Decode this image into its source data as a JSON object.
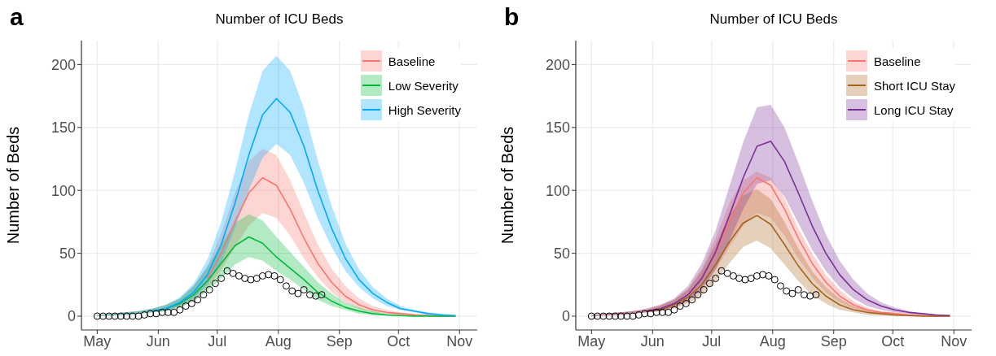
{
  "chart_data": [
    {
      "type": "line",
      "title": "Number of ICU Beds",
      "ylabel": "Number of Beds",
      "annotations": [
        "a"
      ],
      "legend": "top right",
      "grid": true,
      "marker": "none",
      "xlim": [
        "--04-23",
        "--11-10"
      ],
      "ylim": [
        -11,
        219
      ],
      "yticks": [
        0,
        50,
        100,
        150,
        200
      ],
      "xticks": [
        {
          "value": "--05-01",
          "label": "May"
        },
        {
          "value": "--06-01",
          "label": "Jun"
        },
        {
          "value": "--07-01",
          "label": "Jul"
        },
        {
          "value": "--08-01",
          "label": "Aug"
        },
        {
          "value": "--09-01",
          "label": "Sep"
        },
        {
          "value": "--10-01",
          "label": "Oct"
        },
        {
          "value": "--11-01",
          "label": "Nov"
        }
      ],
      "x": [
        "--05-01",
        "--05-08",
        "--05-15",
        "--05-22",
        "--05-29",
        "--06-05",
        "--06-12",
        "--06-19",
        "--06-26",
        "--07-03",
        "--07-10",
        "--07-17",
        "--07-24",
        "--07-31",
        "--08-07",
        "--08-14",
        "--08-21",
        "--08-28",
        "--09-04",
        "--09-11",
        "--09-18",
        "--09-25",
        "--10-02",
        "--10-09",
        "--10-16",
        "--10-23",
        "--10-30"
      ],
      "series": [
        {
          "name": "Baseline",
          "color": "#f8766d",
          "values": [
            null,
            null,
            null,
            null,
            null,
            null,
            null,
            null,
            30,
            50,
            75,
            98,
            110,
            104,
            85,
            62,
            42,
            27,
            16,
            9,
            5,
            3,
            2,
            1,
            0.5,
            0,
            0
          ],
          "lower": [
            0,
            0.5,
            1,
            2,
            3,
            4,
            7,
            12,
            22,
            37,
            55,
            72,
            82,
            78,
            64,
            46,
            31,
            19,
            11,
            6,
            3,
            2,
            1,
            0.5,
            0,
            0,
            0
          ],
          "upper": [
            1,
            2,
            3,
            4,
            6,
            9,
            14,
            24,
            40,
            66,
            98,
            123,
            133,
            128,
            108,
            82,
            57,
            38,
            24,
            14,
            8,
            5,
            3,
            2,
            1,
            1,
            0
          ]
        },
        {
          "name": "Low Severity",
          "color": "#00ba38",
          "values": [
            null,
            null,
            null,
            null,
            4,
            6,
            10,
            17,
            28,
            42,
            56,
            63,
            58,
            47,
            38,
            29,
            19,
            12,
            7,
            4,
            2,
            1,
            0.5,
            0,
            0,
            0,
            0
          ],
          "lower": [
            0,
            0.5,
            1,
            2,
            3,
            4,
            7,
            12,
            20,
            30,
            41,
            47,
            44,
            36,
            29,
            21,
            13,
            8,
            5,
            2,
            1,
            0.5,
            0,
            0,
            0,
            0,
            0
          ],
          "upper": [
            1,
            2,
            3,
            4,
            6,
            9,
            14,
            24,
            39,
            57,
            74,
            81,
            76,
            63,
            51,
            39,
            27,
            18,
            11,
            7,
            4,
            2,
            1,
            1,
            0.5,
            0,
            0
          ]
        },
        {
          "name": "High Severity",
          "color": "#00a9ff",
          "values": [
            null,
            null,
            null,
            null,
            4,
            6,
            11,
            19,
            33,
            57,
            90,
            128,
            160,
            173,
            162,
            135,
            100,
            70,
            46,
            29,
            18,
            11,
            6,
            4,
            2,
            1,
            0.5
          ],
          "lower": [
            0,
            0.5,
            1,
            2,
            3,
            4,
            8,
            14,
            25,
            43,
            70,
            100,
            126,
            137,
            128,
            106,
            78,
            55,
            36,
            23,
            14,
            8,
            5,
            3,
            1,
            0.5,
            0
          ],
          "upper": [
            1,
            2,
            3,
            4,
            6,
            9,
            15,
            26,
            45,
            75,
            115,
            160,
            195,
            207,
            195,
            165,
            124,
            88,
            58,
            37,
            23,
            14,
            8,
            5,
            3,
            2,
            1
          ]
        },
        {
          "type": "scatter",
          "color": "#000000",
          "marker": "circle",
          "x": [
            "--05-01",
            "--05-04",
            "--05-07",
            "--05-10",
            "--05-13",
            "--05-16",
            "--05-19",
            "--05-22",
            "--05-25",
            "--05-28",
            "--05-31",
            "--06-03",
            "--06-06",
            "--06-09",
            "--06-12",
            "--06-15",
            "--06-18",
            "--06-21",
            "--06-24",
            "--06-27",
            "--06-30",
            "--07-03",
            "--07-06",
            "--07-09",
            "--07-12",
            "--07-15",
            "--07-18",
            "--07-21",
            "--07-24",
            "--07-27",
            "--07-30",
            "--08-02",
            "--08-05",
            "--08-08",
            "--08-11",
            "--08-14",
            "--08-17",
            "--08-20",
            "--08-23"
          ],
          "values": [
            0,
            0,
            0,
            0,
            0,
            0,
            0,
            0,
            1,
            2,
            2,
            3,
            3,
            3,
            5,
            8,
            10,
            13,
            17,
            21,
            26,
            30,
            36,
            34,
            32,
            30,
            29,
            30,
            32,
            33,
            32,
            29,
            24,
            20,
            18,
            21,
            17,
            16,
            17
          ]
        }
      ]
    },
    {
      "type": "line",
      "title": "Number of ICU Beds",
      "ylabel": "Number of Beds",
      "annotations": [
        "b"
      ],
      "legend": "top right",
      "grid": true,
      "marker": "none",
      "xlim": [
        "--04-23",
        "--11-10"
      ],
      "ylim": [
        -11,
        219
      ],
      "yticks": [
        0,
        50,
        100,
        150,
        200
      ],
      "xticks": [
        {
          "value": "--05-01",
          "label": "May"
        },
        {
          "value": "--06-01",
          "label": "Jun"
        },
        {
          "value": "--07-01",
          "label": "Jul"
        },
        {
          "value": "--08-01",
          "label": "Aug"
        },
        {
          "value": "--09-01",
          "label": "Sep"
        },
        {
          "value": "--10-01",
          "label": "Oct"
        },
        {
          "value": "--11-01",
          "label": "Nov"
        }
      ],
      "x": [
        "--05-01",
        "--05-08",
        "--05-15",
        "--05-22",
        "--05-29",
        "--06-05",
        "--06-12",
        "--06-19",
        "--06-26",
        "--07-03",
        "--07-10",
        "--07-17",
        "--07-24",
        "--07-31",
        "--08-07",
        "--08-14",
        "--08-21",
        "--08-28",
        "--09-04",
        "--09-11",
        "--09-18",
        "--09-25",
        "--10-02",
        "--10-09",
        "--10-16",
        "--10-23",
        "--10-30"
      ],
      "series": [
        {
          "name": "Baseline",
          "color": "#f8766d",
          "values": [
            null,
            null,
            null,
            null,
            null,
            null,
            null,
            17,
            30,
            50,
            75,
            98,
            110,
            104,
            85,
            62,
            42,
            27,
            16,
            9,
            5,
            3,
            2,
            1,
            0.5,
            0,
            0
          ],
          "lower": [
            0,
            0.5,
            1,
            2,
            3,
            4,
            7,
            12,
            22,
            37,
            55,
            72,
            82,
            78,
            64,
            46,
            31,
            19,
            11,
            6,
            3,
            2,
            1,
            0.5,
            0,
            0,
            0
          ],
          "upper": [
            1,
            2,
            3,
            4,
            6,
            9,
            13,
            22,
            38,
            62,
            90,
            108,
            115,
            110,
            94,
            70,
            50,
            33,
            21,
            12,
            7,
            4,
            3,
            2,
            1,
            1,
            0
          ]
        },
        {
          "name": "Short ICU Stay",
          "color": "#a5641e",
          "values": [
            null,
            null,
            null,
            null,
            4,
            5,
            9,
            15,
            25,
            41,
            59,
            74,
            80,
            73,
            57,
            40,
            26,
            16,
            9,
            5,
            3,
            2,
            1,
            0.5,
            0,
            0,
            0
          ],
          "lower": [
            0,
            0.5,
            1,
            2,
            3,
            4,
            6,
            10,
            17,
            28,
            42,
            55,
            60,
            54,
            41,
            28,
            17,
            10,
            5,
            3,
            1,
            0.5,
            0,
            0,
            0,
            0,
            0
          ],
          "upper": [
            1,
            2,
            3,
            4,
            5,
            8,
            13,
            21,
            36,
            57,
            80,
            96,
            101,
            93,
            75,
            54,
            36,
            23,
            14,
            8,
            5,
            3,
            2,
            1,
            0.5,
            0,
            0
          ]
        },
        {
          "name": "Long ICU Stay",
          "color": "#7b2f96",
          "values": [
            null,
            null,
            null,
            null,
            4,
            6,
            10,
            17,
            30,
            51,
            80,
            110,
            135,
            139,
            123,
            98,
            72,
            50,
            33,
            21,
            13,
            8,
            5,
            3,
            2,
            1,
            0.5
          ],
          "lower": [
            0,
            0.5,
            1,
            2,
            3,
            4,
            7,
            12,
            21,
            37,
            60,
            85,
            105,
            108,
            95,
            74,
            53,
            36,
            23,
            14,
            8,
            5,
            3,
            2,
            1,
            0.5,
            0
          ],
          "upper": [
            1,
            2,
            3,
            4,
            6,
            9,
            14,
            24,
            42,
            68,
            103,
            138,
            166,
            168,
            150,
            122,
            92,
            65,
            44,
            29,
            18,
            11,
            7,
            4,
            2,
            1,
            1
          ]
        },
        {
          "type": "scatter",
          "color": "#000000",
          "marker": "circle",
          "x": [
            "--05-01",
            "--05-04",
            "--05-07",
            "--05-10",
            "--05-13",
            "--05-16",
            "--05-19",
            "--05-22",
            "--05-25",
            "--05-28",
            "--05-31",
            "--06-03",
            "--06-06",
            "--06-09",
            "--06-12",
            "--06-15",
            "--06-18",
            "--06-21",
            "--06-24",
            "--06-27",
            "--06-30",
            "--07-03",
            "--07-06",
            "--07-09",
            "--07-12",
            "--07-15",
            "--07-18",
            "--07-21",
            "--07-24",
            "--07-27",
            "--07-30",
            "--08-02",
            "--08-05",
            "--08-08",
            "--08-11",
            "--08-14",
            "--08-17",
            "--08-20",
            "--08-23"
          ],
          "values": [
            0,
            0,
            0,
            0,
            0,
            0,
            0,
            0,
            1,
            2,
            2,
            3,
            3,
            3,
            5,
            8,
            10,
            13,
            17,
            21,
            26,
            30,
            36,
            34,
            32,
            30,
            29,
            30,
            32,
            33,
            32,
            29,
            24,
            20,
            18,
            21,
            17,
            16,
            17
          ]
        }
      ]
    }
  ]
}
